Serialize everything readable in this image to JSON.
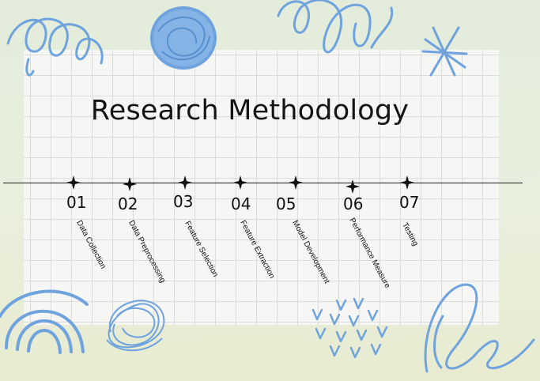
{
  "title": "Research Methodology",
  "accent_color": "#6fa3de",
  "steps": [
    {
      "number": "01",
      "label": "Data Collection"
    },
    {
      "number": "02",
      "label": "Data Preprocessing"
    },
    {
      "number": "03",
      "label": "Feature Selection"
    },
    {
      "number": "04",
      "label": "Feature Extraction"
    },
    {
      "number": "05",
      "label": "Model Development"
    },
    {
      "number": "06",
      "label": "Performance Measure"
    },
    {
      "number": "07",
      "label": "Testing"
    }
  ]
}
